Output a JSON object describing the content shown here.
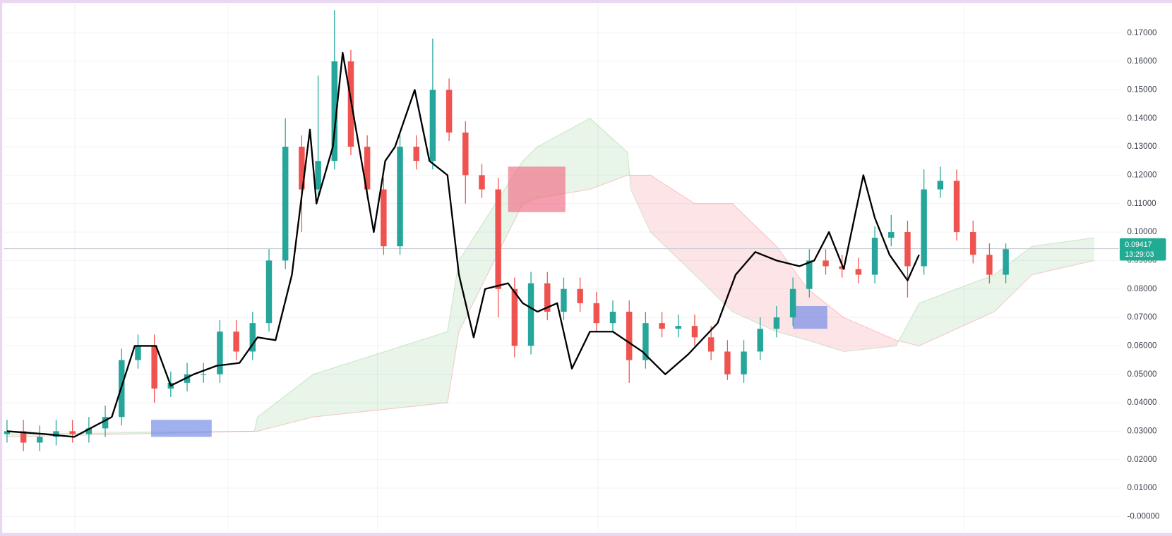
{
  "chart_data": {
    "type": "candlestick",
    "open": [
      0.029,
      0.03,
      0.026,
      0.028,
      0.03,
      0.029,
      0.031,
      0.035,
      0.055,
      0.06,
      0.045,
      0.047,
      0.05,
      0.05,
      0.065,
      0.058,
      0.068,
      0.09,
      0.13,
      0.115,
      0.125,
      0.16,
      0.13,
      0.115,
      0.095,
      0.13,
      0.125,
      0.15,
      0.135,
      0.12,
      0.115,
      0.08,
      0.06,
      0.082,
      0.072,
      0.08,
      0.075,
      0.068,
      0.072,
      0.055,
      0.068,
      0.066,
      0.067,
      0.063,
      0.058,
      0.05,
      0.058,
      0.066,
      0.07,
      0.08,
      0.09,
      0.088,
      0.087,
      0.085,
      0.098,
      0.1,
      0.088,
      0.115,
      0.118,
      0.1,
      0.092,
      0.085
    ],
    "high": [
      0.034,
      0.034,
      0.032,
      0.034,
      0.034,
      0.035,
      0.039,
      0.059,
      0.064,
      0.064,
      0.051,
      0.054,
      0.054,
      0.069,
      0.069,
      0.072,
      0.094,
      0.14,
      0.134,
      0.155,
      0.178,
      0.164,
      0.134,
      0.119,
      0.134,
      0.134,
      0.168,
      0.154,
      0.139,
      0.124,
      0.119,
      0.084,
      0.086,
      0.086,
      0.084,
      0.084,
      0.079,
      0.076,
      0.076,
      0.072,
      0.072,
      0.071,
      0.071,
      0.067,
      0.062,
      0.062,
      0.07,
      0.074,
      0.084,
      0.094,
      0.094,
      0.092,
      0.091,
      0.102,
      0.106,
      0.104,
      0.122,
      0.123,
      0.122,
      0.104,
      0.096,
      0.096
    ],
    "low": [
      0.026,
      0.023,
      0.023,
      0.025,
      0.026,
      0.026,
      0.028,
      0.032,
      0.052,
      0.04,
      0.042,
      0.044,
      0.047,
      0.047,
      0.055,
      0.055,
      0.065,
      0.087,
      0.1,
      0.112,
      0.122,
      0.127,
      0.112,
      0.092,
      0.092,
      0.122,
      0.122,
      0.132,
      0.11,
      0.112,
      0.07,
      0.056,
      0.057,
      0.069,
      0.069,
      0.072,
      0.065,
      0.065,
      0.047,
      0.052,
      0.063,
      0.063,
      0.06,
      0.055,
      0.048,
      0.047,
      0.055,
      0.063,
      0.067,
      0.077,
      0.085,
      0.084,
      0.082,
      0.082,
      0.095,
      0.077,
      0.085,
      0.112,
      0.097,
      0.089,
      0.082,
      0.082
    ],
    "close": [
      0.03,
      0.026,
      0.028,
      0.03,
      0.029,
      0.031,
      0.035,
      0.055,
      0.06,
      0.045,
      0.047,
      0.05,
      0.05,
      0.065,
      0.058,
      0.068,
      0.09,
      0.13,
      0.115,
      0.125,
      0.16,
      0.13,
      0.115,
      0.095,
      0.13,
      0.125,
      0.15,
      0.135,
      0.12,
      0.115,
      0.08,
      0.06,
      0.082,
      0.072,
      0.08,
      0.075,
      0.068,
      0.072,
      0.055,
      0.068,
      0.066,
      0.067,
      0.063,
      0.058,
      0.05,
      0.058,
      0.066,
      0.07,
      0.08,
      0.09,
      0.088,
      0.087,
      0.085,
      0.098,
      0.1,
      0.088,
      0.115,
      0.118,
      0.1,
      0.092,
      0.085,
      0.094
    ],
    "up_color": "#26a69a",
    "down_color": "#ef5350",
    "lagging_span": {
      "color": "#000000",
      "x": [
        0,
        2.3,
        4.1,
        6.4,
        7.8,
        9.1,
        10.0,
        11.4,
        12.8,
        14.2,
        15.3,
        16.4,
        17.4,
        18.5,
        18.9,
        19.9,
        20.5,
        21.5,
        22.4,
        23.1,
        23.7,
        24.9,
        25.8,
        26.9,
        27.6,
        28.5,
        29.2,
        30.6,
        31.5,
        32.4,
        33.6,
        34.5,
        35.6,
        37.0,
        38.8,
        40.2,
        41.6,
        43.4,
        44.5,
        45.7,
        47.0,
        48.4,
        49.3,
        50.2,
        51.1,
        52.3,
        53.0,
        53.9,
        55.0,
        55.7
      ],
      "values": [
        0.03,
        0.029,
        0.028,
        0.035,
        0.06,
        0.06,
        0.046,
        0.05,
        0.053,
        0.054,
        0.063,
        0.062,
        0.085,
        0.136,
        0.11,
        0.13,
        0.163,
        0.13,
        0.1,
        0.125,
        0.13,
        0.15,
        0.125,
        0.12,
        0.085,
        0.063,
        0.08,
        0.082,
        0.075,
        0.072,
        0.075,
        0.052,
        0.065,
        0.065,
        0.058,
        0.05,
        0.057,
        0.068,
        0.085,
        0.093,
        0.09,
        0.088,
        0.09,
        0.1,
        0.087,
        0.12,
        0.105,
        0.092,
        0.083,
        0.092
      ]
    },
    "cloud": {
      "up_color": "#4caf50",
      "down_color": "#f23645",
      "x": [
        0,
        15.1,
        15.3,
        18.7,
        26.9,
        27.6,
        31.5,
        32.4,
        35.6,
        37.9,
        38.1,
        39.3,
        42.0,
        44.3,
        47.0,
        48.9,
        51.1,
        54.3,
        55.7,
        60.3,
        62.6,
        66.4
      ],
      "span_a": [
        0.029,
        0.03,
        0.035,
        0.05,
        0.065,
        0.09,
        0.125,
        0.13,
        0.14,
        0.128,
        0.115,
        0.1,
        0.085,
        0.072,
        0.065,
        0.062,
        0.058,
        0.06,
        0.075,
        0.085,
        0.095,
        0.098
      ],
      "span_b": [
        0.028,
        0.03,
        0.03,
        0.035,
        0.04,
        0.065,
        0.11,
        0.112,
        0.115,
        0.12,
        0.12,
        0.12,
        0.11,
        0.11,
        0.095,
        0.08,
        0.07,
        0.062,
        0.06,
        0.072,
        0.085,
        0.09
      ]
    },
    "highlights": [
      {
        "x": [
          8.8,
          12.5
        ],
        "y": [
          0.028,
          0.034
        ],
        "color": "#6f86e6"
      },
      {
        "x": [
          30.6,
          34.1
        ],
        "y": [
          0.107,
          0.123
        ],
        "color": "#f06a82"
      },
      {
        "x": [
          48.0,
          50.1
        ],
        "y": [
          0.066,
          0.074
        ],
        "color": "#6f86e6"
      }
    ],
    "last_price": 0.09417,
    "countdown": "13:29:03",
    "price_color": "#22ab94",
    "xlim": [
      -0.2,
      68
    ],
    "ylim": [
      -0.005,
      0.18
    ],
    "yticks": [
      {
        "value": 0,
        "label": "-0.00000"
      },
      {
        "value": 0.01,
        "label": "0.01000"
      },
      {
        "value": 0.02,
        "label": "0.02000"
      },
      {
        "value": 0.03,
        "label": "0.03000"
      },
      {
        "value": 0.04,
        "label": "0.04000"
      },
      {
        "value": 0.05,
        "label": "0.05000"
      },
      {
        "value": 0.06,
        "label": "0.06000"
      },
      {
        "value": 0.07,
        "label": "0.07000"
      },
      {
        "value": 0.08,
        "label": "0.08000"
      },
      {
        "value": 0.09,
        "label": "0.09000"
      },
      {
        "value": 0.1,
        "label": "0.10000"
      },
      {
        "value": 0.11,
        "label": "0.11000"
      },
      {
        "value": 0.12,
        "label": "0.12000"
      },
      {
        "value": 0.13,
        "label": "0.13000"
      },
      {
        "value": 0.14,
        "label": "0.14000"
      },
      {
        "value": 0.15,
        "label": "0.15000"
      },
      {
        "value": 0.16,
        "label": "0.16000"
      },
      {
        "value": 0.17,
        "label": "0.17000"
      }
    ],
    "grid": true
  }
}
